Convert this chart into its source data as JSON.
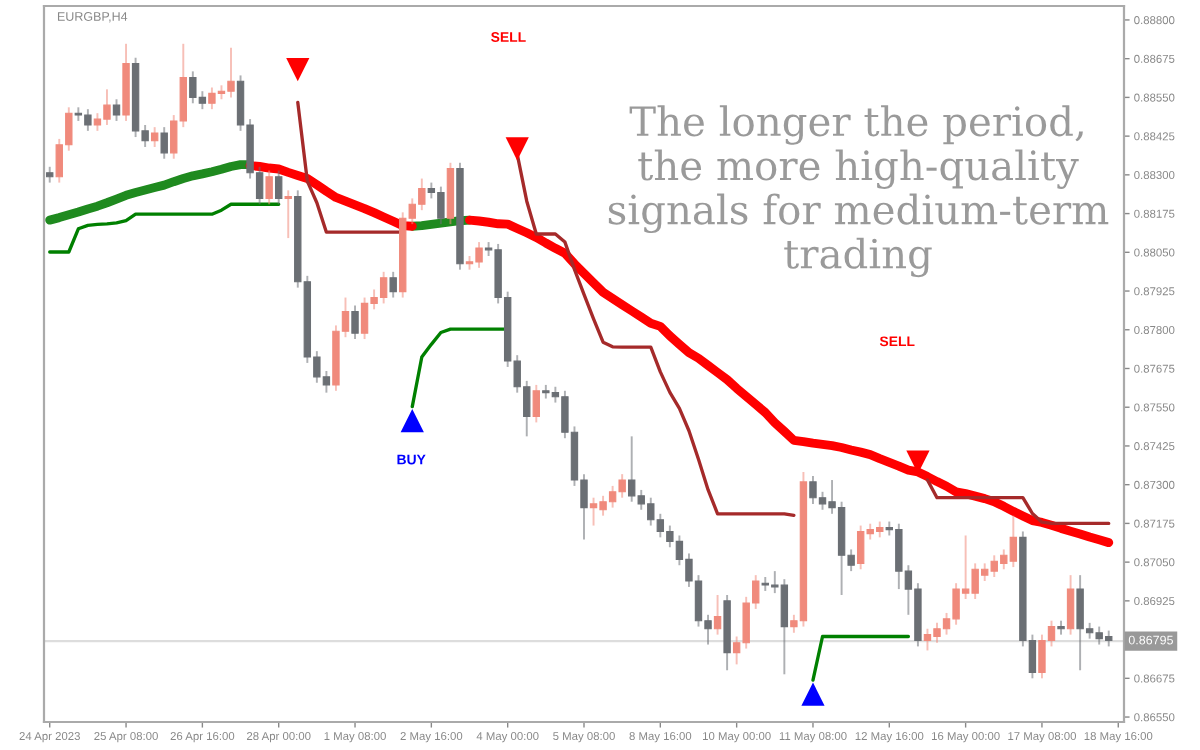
{
  "chart_data": {
    "type": "candlestick",
    "title": "EURGBP,H4",
    "annotations": [
      "The longer the period,\nthe more high-quality\nsignals for medium-term\ntrading",
      "SELL",
      "SELL",
      "BUY"
    ],
    "categories": [
      "24 Apr 2023",
      null,
      null,
      null,
      null,
      null,
      null,
      null,
      "25 Apr 08:00",
      null,
      null,
      null,
      null,
      null,
      null,
      null,
      "26 Apr 16:00",
      null,
      null,
      null,
      null,
      null,
      null,
      null,
      "28 Apr 00:00",
      null,
      null,
      null,
      null,
      null,
      null,
      null,
      "1 May 08:00",
      null,
      null,
      null,
      null,
      null,
      null,
      null,
      "2 May 16:00",
      null,
      null,
      null,
      null,
      null,
      null,
      null,
      "4 May 00:00",
      null,
      null,
      null,
      null,
      null,
      null,
      null,
      "5 May 08:00",
      null,
      null,
      null,
      null,
      null,
      null,
      null,
      "8 May 16:00",
      null,
      null,
      null,
      null,
      null,
      null,
      null,
      "10 May 00:00",
      null,
      null,
      null,
      null,
      null,
      null,
      null,
      "11 May 08:00",
      null,
      null,
      null,
      null,
      null,
      null,
      null,
      "12 May 16:00",
      null,
      null,
      null,
      null,
      null,
      null,
      null,
      "16 May 00:00",
      null,
      null,
      null,
      null,
      null,
      null,
      null,
      "17 May 08:00",
      null,
      null,
      null,
      null,
      null,
      null,
      null,
      "18 May 16:00"
    ],
    "ohlc": [
      [
        0.88307,
        0.88326,
        0.88275,
        0.88294
      ],
      [
        0.88294,
        0.88416,
        0.88275,
        0.88397
      ],
      [
        0.88397,
        0.88518,
        0.88378,
        0.88499
      ],
      [
        0.88499,
        0.88518,
        0.88474,
        0.88493
      ],
      [
        0.88493,
        0.88512,
        0.88442,
        0.88461
      ],
      [
        0.88461,
        0.88499,
        0.88442,
        0.8848
      ],
      [
        0.8848,
        0.88576,
        0.88461,
        0.88525
      ],
      [
        0.88525,
        0.88544,
        0.88474,
        0.88493
      ],
      [
        0.88493,
        0.88723,
        0.88474,
        0.88659
      ],
      [
        0.88659,
        0.88678,
        0.88422,
        0.88442
      ],
      [
        0.88442,
        0.88461,
        0.8839,
        0.8841
      ],
      [
        0.8841,
        0.88454,
        0.8839,
        0.88435
      ],
      [
        0.88435,
        0.88454,
        0.88352,
        0.88371
      ],
      [
        0.88371,
        0.88493,
        0.88352,
        0.88474
      ],
      [
        0.88474,
        0.88723,
        0.88454,
        0.88614
      ],
      [
        0.88614,
        0.88634,
        0.88531,
        0.8855
      ],
      [
        0.8855,
        0.8857,
        0.88512,
        0.88531
      ],
      [
        0.88531,
        0.88582,
        0.88512,
        0.88563
      ],
      [
        0.88563,
        0.88589,
        0.88544,
        0.8857
      ],
      [
        0.8857,
        0.8871,
        0.8855,
        0.88602
      ],
      [
        0.88602,
        0.88621,
        0.88442,
        0.88461
      ],
      [
        0.88461,
        0.8848,
        0.88288,
        0.88307
      ],
      [
        0.88307,
        0.88326,
        0.88205,
        0.88224
      ],
      [
        0.88224,
        0.88314,
        0.88205,
        0.88294
      ],
      [
        0.88294,
        0.88314,
        0.88205,
        0.88224
      ],
      [
        0.88224,
        0.8825,
        0.88096,
        0.8823
      ],
      [
        0.8823,
        0.8825,
        0.87936,
        0.87955
      ],
      [
        0.87955,
        0.87974,
        0.87693,
        0.87712
      ],
      [
        0.87712,
        0.87731,
        0.87629,
        0.87648
      ],
      [
        0.87648,
        0.87667,
        0.87597,
        0.87622
      ],
      [
        0.87622,
        0.87814,
        0.87603,
        0.87795
      ],
      [
        0.87795,
        0.87904,
        0.87776,
        0.87859
      ],
      [
        0.87859,
        0.87878,
        0.8777,
        0.87789
      ],
      [
        0.87789,
        0.87904,
        0.8777,
        0.87885
      ],
      [
        0.87885,
        0.8793,
        0.87866,
        0.87904
      ],
      [
        0.87904,
        0.87987,
        0.87885,
        0.87968
      ],
      [
        0.87968,
        0.87987,
        0.87904,
        0.87923
      ],
      [
        0.87923,
        0.88179,
        0.87904,
        0.8816
      ],
      [
        0.8816,
        0.88224,
        0.88141,
        0.88205
      ],
      [
        0.88205,
        0.88288,
        0.88186,
        0.88256
      ],
      [
        0.88256,
        0.88275,
        0.88224,
        0.88243
      ],
      [
        0.88243,
        0.88262,
        0.88141,
        0.8816
      ],
      [
        0.8816,
        0.88339,
        0.88141,
        0.8832
      ],
      [
        0.8832,
        0.88339,
        0.87994,
        0.88013
      ],
      [
        0.88013,
        0.88038,
        0.87994,
        0.88019
      ],
      [
        0.88019,
        0.88083,
        0.88,
        0.88064
      ],
      [
        0.88064,
        0.88083,
        0.88038,
        0.88058
      ],
      [
        0.88058,
        0.88077,
        0.87885,
        0.87904
      ],
      [
        0.87904,
        0.87923,
        0.8768,
        0.87699
      ],
      [
        0.87699,
        0.87718,
        0.87597,
        0.87616
      ],
      [
        0.87616,
        0.87635,
        0.87456,
        0.8752
      ],
      [
        0.8752,
        0.87622,
        0.87501,
        0.87603
      ],
      [
        0.87603,
        0.87622,
        0.87578,
        0.87597
      ],
      [
        0.87597,
        0.87616,
        0.87565,
        0.87584
      ],
      [
        0.87584,
        0.87603,
        0.8745,
        0.87469
      ],
      [
        0.87469,
        0.87488,
        0.87296,
        0.87315
      ],
      [
        0.87315,
        0.87334,
        0.87123,
        0.87226
      ],
      [
        0.87226,
        0.87258,
        0.87168,
        0.87238
      ],
      [
        0.87219,
        0.87264,
        0.872,
        0.87245
      ],
      [
        0.87245,
        0.87296,
        0.87226,
        0.87277
      ],
      [
        0.87277,
        0.87334,
        0.87258,
        0.87315
      ],
      [
        0.87315,
        0.87456,
        0.87245,
        0.87264
      ],
      [
        0.87264,
        0.87283,
        0.87219,
        0.87238
      ],
      [
        0.87238,
        0.87258,
        0.87168,
        0.87187
      ],
      [
        0.87187,
        0.87206,
        0.8713,
        0.87149
      ],
      [
        0.87149,
        0.87168,
        0.87098,
        0.87117
      ],
      [
        0.87117,
        0.87136,
        0.8704,
        0.87059
      ],
      [
        0.87059,
        0.87078,
        0.8697,
        0.86989
      ],
      [
        0.86989,
        0.87008,
        0.86842,
        0.86861
      ],
      [
        0.86861,
        0.8688,
        0.86784,
        0.86835
      ],
      [
        0.86835,
        0.86944,
        0.86816,
        0.86874
      ],
      [
        0.86925,
        0.86944,
        0.86701,
        0.86758
      ],
      [
        0.86758,
        0.8681,
        0.8672,
        0.8679
      ],
      [
        0.8679,
        0.86938,
        0.86771,
        0.86918
      ],
      [
        0.86918,
        0.87008,
        0.86899,
        0.86989
      ],
      [
        0.86982,
        0.87002,
        0.86957,
        0.86976
      ],
      [
        0.86976,
        0.87021,
        0.8695,
        0.8697
      ],
      [
        0.86976,
        0.86995,
        0.86688,
        0.86842
      ],
      [
        0.86842,
        0.8688,
        0.86822,
        0.86861
      ],
      [
        0.86861,
        0.87341,
        0.86842,
        0.87309
      ],
      [
        0.87309,
        0.87328,
        0.87238,
        0.87258
      ],
      [
        0.87258,
        0.87277,
        0.87219,
        0.87238
      ],
      [
        0.87245,
        0.87315,
        0.87206,
        0.87226
      ],
      [
        0.87226,
        0.87245,
        0.86944,
        0.87072
      ],
      [
        0.87072,
        0.87091,
        0.87021,
        0.8704
      ],
      [
        0.87046,
        0.87168,
        0.87027,
        0.87149
      ],
      [
        0.87142,
        0.87174,
        0.87123,
        0.87155
      ],
      [
        0.87149,
        0.87181,
        0.8713,
        0.87162
      ],
      [
        0.87162,
        0.87181,
        0.87136,
        0.87155
      ],
      [
        0.87155,
        0.87174,
        0.86963,
        0.87021
      ],
      [
        0.87021,
        0.8704,
        0.8688,
        0.86963
      ],
      [
        0.86963,
        0.86982,
        0.86778,
        0.86797
      ],
      [
        0.86797,
        0.86835,
        0.86765,
        0.86816
      ],
      [
        0.8681,
        0.86854,
        0.8679,
        0.86835
      ],
      [
        0.86835,
        0.86886,
        0.86816,
        0.86867
      ],
      [
        0.86867,
        0.86982,
        0.86848,
        0.86963
      ],
      [
        0.8695,
        0.87136,
        0.86931,
        0.86963
      ],
      [
        0.8695,
        0.87046,
        0.86931,
        0.87027
      ],
      [
        0.87008,
        0.87046,
        0.86989,
        0.87027
      ],
      [
        0.87021,
        0.87072,
        0.87002,
        0.87053
      ],
      [
        0.87046,
        0.87091,
        0.87027,
        0.87072
      ],
      [
        0.87053,
        0.872,
        0.87034,
        0.8713
      ],
      [
        0.8713,
        0.87149,
        0.86778,
        0.86797
      ],
      [
        0.86797,
        0.86816,
        0.86675,
        0.86694
      ],
      [
        0.86694,
        0.86816,
        0.86675,
        0.86797
      ],
      [
        0.86797,
        0.86861,
        0.86778,
        0.86842
      ],
      [
        0.86842,
        0.86861,
        0.86816,
        0.86835
      ],
      [
        0.86835,
        0.87008,
        0.86816,
        0.86963
      ],
      [
        0.86963,
        0.87008,
        0.86701,
        0.86835
      ],
      [
        0.86835,
        0.86854,
        0.86803,
        0.86822
      ],
      [
        0.86822,
        0.86842,
        0.86784,
        0.86803
      ],
      [
        0.8681,
        0.86829,
        0.86778,
        0.86797
      ],
      null
    ],
    "colors": [
      "#6b6f74",
      "#f08a7c",
      "#f08a7c",
      "#6b6f74",
      "#6b6f74",
      "#f08a7c",
      "#f08a7c",
      "#6b6f74",
      "#f08a7c",
      "#6b6f74",
      "#6b6f74",
      "#f08a7c",
      "#6b6f74",
      "#f08a7c",
      "#f08a7c",
      "#6b6f74",
      "#6b6f74",
      "#f08a7c",
      "#f08a7c",
      "#f08a7c",
      "#6b6f74",
      "#6b6f74",
      "#6b6f74",
      "#f08a7c",
      "#6b6f74",
      "#f08a7c",
      "#6b6f74",
      "#6b6f74",
      "#6b6f74",
      "#6b6f74",
      "#f08a7c",
      "#f08a7c",
      "#6b6f74",
      "#f08a7c",
      "#f08a7c",
      "#f08a7c",
      "#6b6f74",
      "#f08a7c",
      "#f08a7c",
      "#f08a7c",
      "#6b6f74",
      "#6b6f74",
      "#f08a7c",
      "#6b6f74",
      "#f08a7c",
      "#f08a7c",
      "#6b6f74",
      "#6b6f74",
      "#6b6f74",
      "#6b6f74",
      "#6b6f74",
      "#f08a7c",
      "#6b6f74",
      "#6b6f74",
      "#6b6f74",
      "#6b6f74",
      "#6b6f74",
      "#f08a7c",
      "#f08a7c",
      "#f08a7c",
      "#f08a7c",
      "#6b6f74",
      "#6b6f74",
      "#6b6f74",
      "#6b6f74",
      "#6b6f74",
      "#6b6f74",
      "#6b6f74",
      "#6b6f74",
      "#6b6f74",
      "#f08a7c",
      "#6b6f74",
      "#f08a7c",
      "#f08a7c",
      "#f08a7c",
      "#6b6f74",
      "#6b6f74",
      "#6b6f74",
      "#f08a7c",
      "#f08a7c",
      "#6b6f74",
      "#6b6f74",
      "#6b6f74",
      "#6b6f74",
      "#6b6f74",
      "#f08a7c",
      "#f08a7c",
      "#f08a7c",
      "#6b6f74",
      "#6b6f74",
      "#6b6f74",
      "#6b6f74",
      "#f08a7c",
      "#f08a7c",
      "#f08a7c",
      "#f08a7c",
      "#f08a7c",
      "#f08a7c",
      "#f08a7c",
      "#f08a7c",
      "#f08a7c",
      "#f08a7c",
      "#6b6f74",
      "#6b6f74",
      "#f08a7c",
      "#f08a7c",
      "#6b6f74",
      "#f08a7c",
      "#6b6f74",
      "#6b6f74",
      "#6b6f74",
      "#6b6f74",
      null
    ],
    "series": [
      {
        "type": "line",
        "color": "#1f8a1f",
        "values": [
          0.88154,
          0.88162,
          0.88171,
          0.8818,
          0.8819,
          0.88199,
          0.8821,
          0.88222,
          0.88234,
          0.88243,
          0.88251,
          0.88259,
          0.88267,
          0.88278,
          0.88288,
          0.88297,
          0.88303,
          0.8831,
          0.88318,
          0.88327,
          0.88333,
          0.88333,
          null,
          null,
          null,
          null,
          null,
          null,
          null,
          null,
          null,
          null,
          null,
          null,
          null,
          null,
          null,
          null,
          0.88134,
          0.88136,
          0.8814,
          0.88144,
          0.88148,
          0.88152,
          0.88154,
          null,
          null,
          null,
          null,
          null,
          null,
          null,
          null,
          null,
          null,
          null,
          null,
          null,
          null,
          null,
          null,
          null,
          null,
          null,
          null,
          null,
          null,
          null,
          null,
          null,
          null,
          null,
          null,
          null,
          null,
          null,
          null,
          null,
          null,
          null,
          null,
          null,
          null,
          null,
          null,
          null,
          null,
          null,
          null,
          null,
          null,
          null,
          null,
          null,
          null,
          null,
          null,
          null,
          null,
          null,
          null,
          null,
          null,
          null,
          null,
          null,
          null,
          null,
          null,
          null,
          null,
          null,
          null
        ]
      },
      {
        "type": "line",
        "color": "#ff0000",
        "values": [
          null,
          null,
          null,
          null,
          null,
          null,
          null,
          null,
          null,
          null,
          null,
          null,
          null,
          null,
          null,
          null,
          null,
          null,
          null,
          null,
          null,
          0.8833,
          0.88327,
          0.88322,
          0.88319,
          0.88308,
          0.88298,
          0.88288,
          0.88268,
          0.88247,
          0.88227,
          0.88215,
          0.88203,
          0.88191,
          0.88178,
          0.88164,
          0.8815,
          0.88136,
          0.88134,
          null,
          null,
          null,
          null,
          null,
          0.88154,
          0.88151,
          0.88147,
          0.88142,
          0.88141,
          0.88127,
          0.88113,
          0.88098,
          0.8808,
          0.88063,
          0.88047,
          0.88013,
          0.87982,
          0.87951,
          0.87921,
          0.87901,
          0.87881,
          0.87861,
          0.87841,
          0.87821,
          0.87811,
          0.8778,
          0.87753,
          0.87726,
          0.87708,
          0.87685,
          0.87662,
          0.87639,
          0.87611,
          0.87585,
          0.87559,
          0.87533,
          0.875,
          0.87472,
          0.87443,
          0.87439,
          0.87434,
          0.8743,
          0.87426,
          0.8742,
          0.87412,
          0.87405,
          0.87397,
          0.87384,
          0.87372,
          0.8736,
          0.87347,
          0.87341,
          0.87326,
          0.8731,
          0.87295,
          0.87277,
          0.87271,
          0.87263,
          0.87255,
          0.87245,
          0.8723,
          0.87214,
          0.87199,
          0.87184,
          0.87178,
          0.87169,
          0.87159,
          0.8715,
          0.87141,
          0.87131,
          0.87122,
          0.87113,
          null
        ]
      },
      {
        "type": "line",
        "color": "#a52a2a",
        "values": [
          null,
          null,
          null,
          null,
          null,
          null,
          null,
          null,
          null,
          null,
          null,
          null,
          null,
          null,
          null,
          null,
          null,
          null,
          null,
          null,
          null,
          null,
          null,
          null,
          null,
          null,
          0.88534,
          0.8828,
          0.8821,
          0.88115,
          0.88115,
          0.88115,
          0.88115,
          0.88115,
          0.88115,
          0.88115,
          0.88115,
          0.88115,
          null,
          null,
          null,
          null,
          null,
          null,
          null,
          null,
          null,
          null,
          null,
          0.88367,
          0.88215,
          0.88109,
          0.88109,
          0.88109,
          0.88083,
          0.87995,
          0.87914,
          0.87835,
          0.8776,
          0.87745,
          0.87744,
          0.87744,
          0.87744,
          0.87744,
          0.87664,
          0.87598,
          0.87546,
          0.87474,
          0.87382,
          0.87284,
          0.87206,
          0.87206,
          0.87206,
          0.87206,
          0.87206,
          0.87206,
          0.87206,
          0.87206,
          0.87201,
          null,
          null,
          null,
          null,
          null,
          null,
          null,
          null,
          null,
          null,
          null,
          null,
          null,
          0.87315,
          0.87258,
          0.87258,
          0.87258,
          0.87258,
          0.87258,
          0.87258,
          0.87258,
          0.87258,
          0.87258,
          0.87258,
          0.87207,
          0.87179,
          0.87175,
          0.87175,
          0.87175,
          0.87175,
          0.87175,
          0.87175,
          0.87175,
          null
        ]
      },
      {
        "type": "line",
        "color": "#008000",
        "values": [
          0.88051,
          0.88051,
          0.88051,
          0.88126,
          0.88137,
          0.8814,
          0.88142,
          0.88145,
          0.88152,
          0.88173,
          0.88173,
          0.88173,
          0.88173,
          0.88173,
          0.88173,
          0.88173,
          0.88173,
          0.88173,
          0.88186,
          0.88205,
          0.88205,
          0.88205,
          0.88205,
          0.88205,
          0.88205,
          null,
          null,
          null,
          null,
          null,
          null,
          null,
          null,
          null,
          null,
          null,
          null,
          null,
          0.87552,
          0.87712,
          0.87753,
          0.87791,
          0.87802,
          0.87802,
          0.87802,
          0.87802,
          0.87802,
          0.87802,
          0.87802,
          null,
          null,
          null,
          null,
          null,
          null,
          null,
          null,
          null,
          null,
          null,
          null,
          null,
          null,
          null,
          null,
          null,
          null,
          null,
          null,
          null,
          null,
          null,
          null,
          null,
          null,
          null,
          null,
          null,
          null,
          null,
          0.86669,
          0.8681,
          0.8681,
          0.8681,
          0.8681,
          0.8681,
          0.8681,
          0.8681,
          0.8681,
          0.8681,
          0.8681,
          null,
          null,
          null,
          null,
          null,
          null,
          null,
          null,
          null,
          null,
          null,
          null,
          null,
          null,
          null,
          null,
          null,
          null,
          null,
          null,
          null,
          null
        ]
      },
      {
        "type": "scatter",
        "marker": "triangle",
        "color": "#ff0000",
        "values": [
          null,
          null,
          null,
          null,
          null,
          null,
          null,
          null,
          null,
          null,
          null,
          null,
          null,
          null,
          null,
          null,
          null,
          null,
          null,
          null,
          null,
          null,
          null,
          null,
          null,
          null,
          0.8864,
          null,
          null,
          null,
          null,
          null,
          null,
          null,
          null,
          null,
          null,
          null,
          null,
          null,
          null,
          null,
          null,
          null,
          null,
          null,
          null,
          null,
          null,
          0.88384,
          null,
          null,
          null,
          null,
          null,
          null,
          null,
          null,
          null,
          null,
          null,
          null,
          null,
          null,
          null,
          null,
          null,
          null,
          null,
          null,
          null,
          null,
          null,
          null,
          null,
          null,
          null,
          null,
          null,
          null,
          null,
          null,
          null,
          null,
          null,
          null,
          null,
          null,
          null,
          null,
          null,
          0.87373,
          null,
          null,
          null,
          null,
          null,
          null,
          null,
          null,
          null,
          null,
          null,
          null,
          null,
          null,
          null,
          null,
          null,
          null,
          null,
          null,
          null
        ]
      },
      {
        "type": "scatter",
        "marker": "triangle",
        "color": "#0000ff",
        "values": [
          null,
          null,
          null,
          null,
          null,
          null,
          null,
          null,
          null,
          null,
          null,
          null,
          null,
          null,
          null,
          null,
          null,
          null,
          null,
          null,
          null,
          null,
          null,
          null,
          null,
          null,
          null,
          null,
          null,
          null,
          null,
          null,
          null,
          null,
          null,
          null,
          null,
          null,
          0.87507,
          null,
          null,
          null,
          null,
          null,
          null,
          null,
          null,
          null,
          null,
          null,
          null,
          null,
          null,
          null,
          null,
          null,
          null,
          null,
          null,
          null,
          null,
          null,
          null,
          null,
          null,
          null,
          null,
          null,
          null,
          null,
          null,
          null,
          null,
          null,
          null,
          null,
          null,
          null,
          null,
          null,
          0.86624,
          null,
          null,
          null,
          null,
          null,
          null,
          null,
          null,
          null,
          null,
          null,
          null,
          null,
          null,
          null,
          null,
          null,
          null,
          null,
          null,
          null,
          null,
          null,
          null,
          null,
          null,
          null,
          null,
          null,
          null,
          null,
          null
        ]
      }
    ],
    "ref_lines": [
      {
        "axis": "y",
        "value": 0.86795,
        "label": "0.86795",
        "color": "#dddddd"
      }
    ],
    "ylim": [
      0.86534,
      0.88845
    ],
    "yticks": [
      {
        "value": 0.888,
        "label": "0.88800"
      },
      {
        "value": 0.88675,
        "label": "0.88675"
      },
      {
        "value": 0.8855,
        "label": "0.88550"
      },
      {
        "value": 0.88425,
        "label": "0.88425"
      },
      {
        "value": 0.883,
        "label": "0.88300"
      },
      {
        "value": 0.88175,
        "label": "0.88175"
      },
      {
        "value": 0.8805,
        "label": "0.88050"
      },
      {
        "value": 0.87925,
        "label": "0.87925"
      },
      {
        "value": 0.878,
        "label": "0.87800"
      },
      {
        "value": 0.87675,
        "label": "0.87675"
      },
      {
        "value": 0.8755,
        "label": "0.87550"
      },
      {
        "value": 0.87425,
        "label": "0.87425"
      },
      {
        "value": 0.873,
        "label": "0.87300"
      },
      {
        "value": 0.87175,
        "label": "0.87175"
      },
      {
        "value": 0.8705,
        "label": "0.87050"
      },
      {
        "value": 0.86925,
        "label": "0.86925"
      },
      {
        "value": 0.86675,
        "label": "0.86675"
      },
      {
        "value": 0.8655,
        "label": "0.86550"
      }
    ],
    "grid": false,
    "legend": false
  }
}
